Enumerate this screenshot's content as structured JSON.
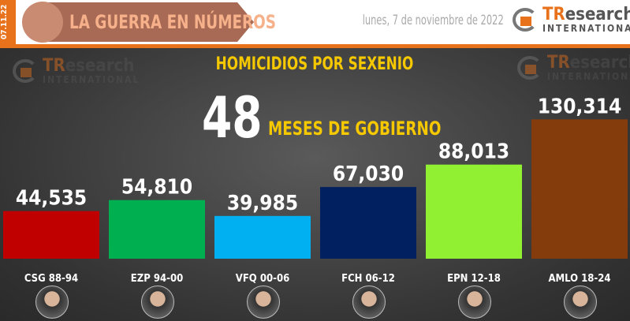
{
  "header": {
    "side_date": "07.11.22",
    "banner_title": "LA GUERRA EN NÚMEROS",
    "date": "lunes, 7 de noviembre de 2022",
    "logo": "TResearch INTERNATIONAL"
  },
  "accent": "#e8721c",
  "chart_data": {
    "type": "bar",
    "title": "HOMICIDIOS POR SEXENIO",
    "highlight_number": "48",
    "highlight_text": "MESES DE GOBIERNO",
    "categories": [
      "CSG 88-94",
      "EZP 94-00",
      "VFQ 00-06",
      "FCH 06-12",
      "EPN 12-18",
      "AMLO 18-24"
    ],
    "values": [
      44535,
      54810,
      39985,
      67030,
      88013,
      130314
    ],
    "labels": [
      "44,535",
      "54,810",
      "39,985",
      "67,030",
      "88,013",
      "130,314"
    ],
    "colors": [
      "#c00000",
      "#00b050",
      "#00b0f0",
      "#002060",
      "#92f033",
      "#843c0c"
    ],
    "ylim": [
      0,
      135000
    ],
    "grid": false
  }
}
